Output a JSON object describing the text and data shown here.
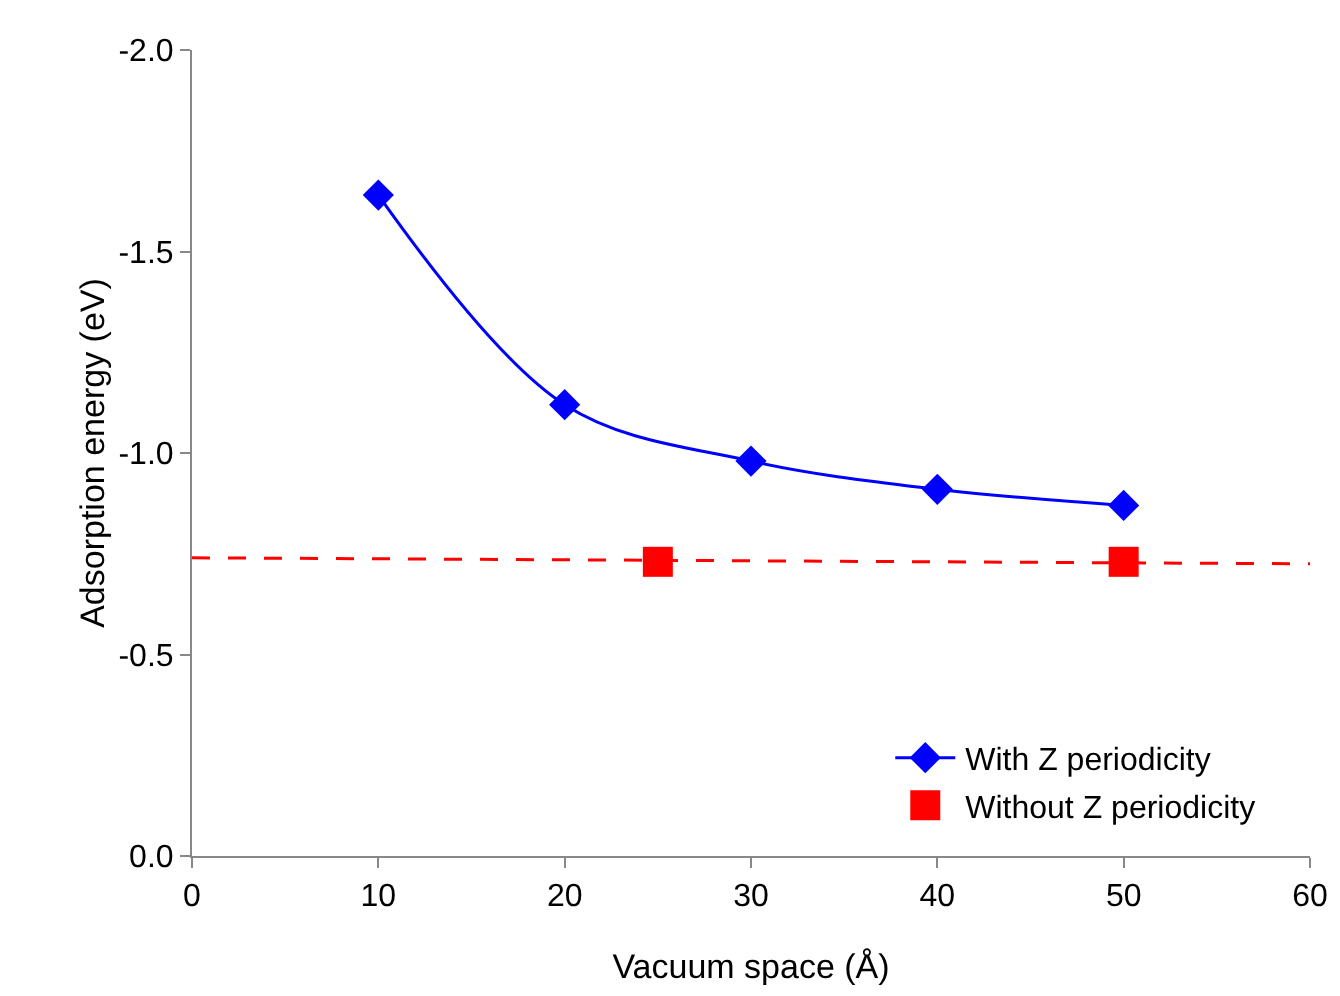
{
  "chart_data": {
    "type": "line",
    "xlabel": "Vacuum space (Å)",
    "ylabel": "Adsorption energy (eV)",
    "xlim": [
      0,
      60
    ],
    "xticks": [
      0,
      10,
      20,
      30,
      40,
      50,
      60
    ],
    "ylim": [
      0,
      -2
    ],
    "yticks": [
      {
        "value": 0,
        "label": "0.0"
      },
      -0.5,
      {
        "value": -1,
        "label": "-1.0"
      },
      -1.5,
      {
        "value": -2,
        "label": "-2.0"
      }
    ],
    "grid": false,
    "legend": "bottom right",
    "series": [
      {
        "name": "With Z periodicity",
        "color": "#0000ff",
        "marker": "diamond",
        "line_style": "solid",
        "x": [
          10,
          20,
          30,
          40,
          50
        ],
        "values": [
          -1.64,
          -1.12,
          -0.98,
          -0.91,
          -0.87
        ]
      },
      {
        "name": "Without Z periodicity",
        "type": "scatter",
        "color": "#ff0000",
        "marker": "square",
        "x": [
          25,
          50
        ],
        "values": [
          -0.73,
          -0.73
        ]
      },
      {
        "type": "line",
        "color": "#ff0000",
        "marker": "none",
        "line_style": "dashed",
        "x": [
          0,
          60
        ],
        "values": [
          -0.74,
          -0.725
        ]
      }
    ]
  }
}
